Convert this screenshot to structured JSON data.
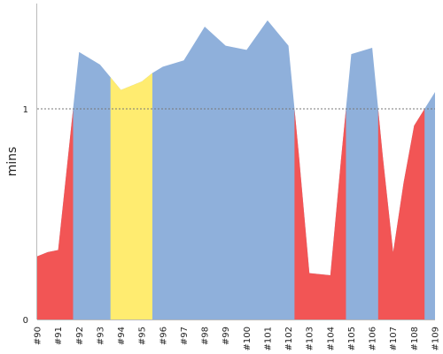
{
  "chart_data": {
    "type": "area",
    "xlabel": "",
    "ylabel": "mins",
    "ylim": [
      0,
      1.5
    ],
    "y_ticks": [
      0,
      1
    ],
    "reference_line": {
      "value": 1,
      "style": "dotted",
      "color": "#777777"
    },
    "colors": {
      "above": "#8fb0db",
      "below": "#f25555",
      "highlight": "#ffec70",
      "axis": "#bbbbbb"
    },
    "x_labels": [
      "#90",
      "#91",
      "#92",
      "#93",
      "#94",
      "#95",
      "#96",
      "#97",
      "#98",
      "#99",
      "#100",
      "#101",
      "#102",
      "#103",
      "#104",
      "#105",
      "#106",
      "#107",
      "#108",
      "#109"
    ],
    "x_positions": [
      0,
      1,
      2,
      3,
      4,
      5,
      6,
      7,
      8,
      9,
      10,
      11,
      12,
      13,
      14,
      15,
      16,
      17,
      18,
      19
    ],
    "points": [
      {
        "x": 0.0,
        "y": 0.3
      },
      {
        "x": 0.5,
        "y": 0.32
      },
      {
        "x": 1.0,
        "y": 0.33
      },
      {
        "x": 1.5,
        "y": 0.8
      },
      {
        "x": 2.0,
        "y": 1.27
      },
      {
        "x": 3.0,
        "y": 1.21
      },
      {
        "x": 3.5,
        "y": 1.15
      },
      {
        "x": 4.0,
        "y": 1.09
      },
      {
        "x": 5.0,
        "y": 1.13
      },
      {
        "x": 5.5,
        "y": 1.17
      },
      {
        "x": 6.0,
        "y": 1.2
      },
      {
        "x": 7.0,
        "y": 1.23
      },
      {
        "x": 8.0,
        "y": 1.39
      },
      {
        "x": 9.0,
        "y": 1.3
      },
      {
        "x": 10.0,
        "y": 1.28
      },
      {
        "x": 11.0,
        "y": 1.42
      },
      {
        "x": 11.5,
        "y": 1.36
      },
      {
        "x": 12.0,
        "y": 1.3
      },
      {
        "x": 12.5,
        "y": 0.78
      },
      {
        "x": 13.0,
        "y": 0.22
      },
      {
        "x": 14.0,
        "y": 0.21
      },
      {
        "x": 14.5,
        "y": 0.75
      },
      {
        "x": 15.0,
        "y": 1.26
      },
      {
        "x": 16.0,
        "y": 1.29
      },
      {
        "x": 16.5,
        "y": 0.78
      },
      {
        "x": 17.0,
        "y": 0.32
      },
      {
        "x": 17.5,
        "y": 0.65
      },
      {
        "x": 18.0,
        "y": 0.92
      },
      {
        "x": 19.0,
        "y": 1.08
      }
    ],
    "highlight_range": [
      3.5,
      5.5
    ],
    "grid": false,
    "legend": "none"
  }
}
